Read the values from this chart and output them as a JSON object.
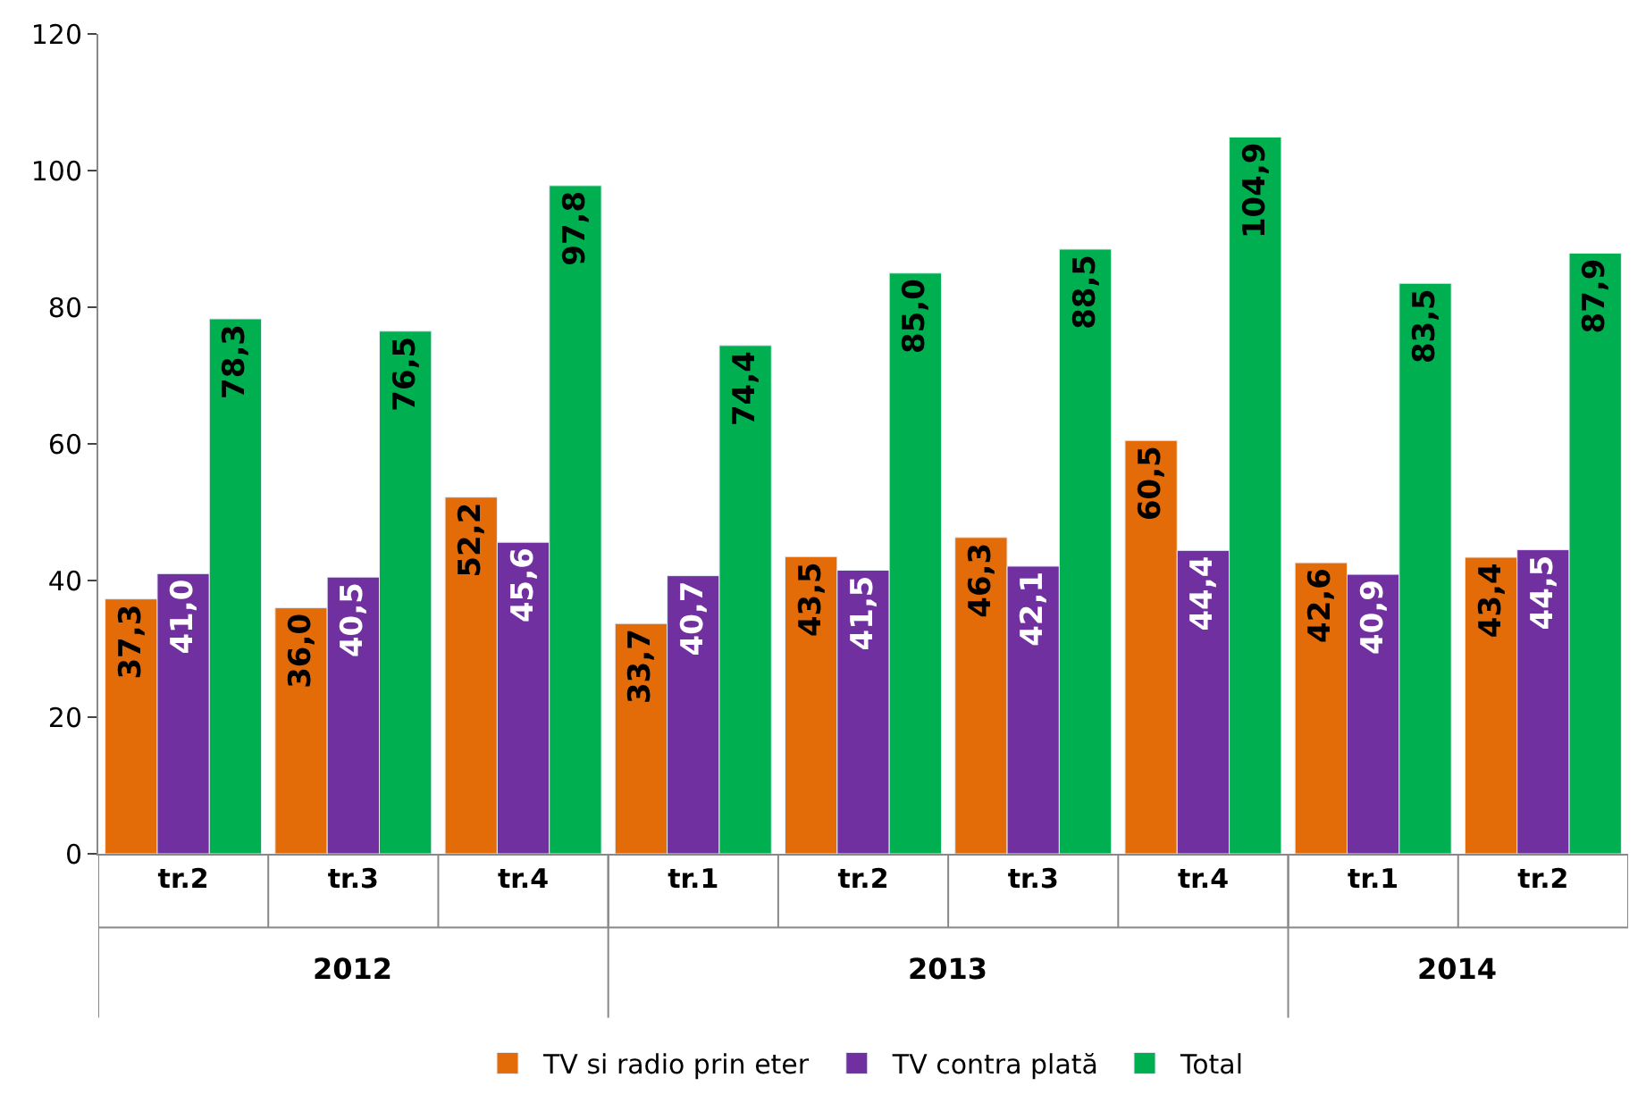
{
  "chart_data": {
    "type": "bar",
    "categories": [
      "tr.2",
      "tr.3",
      "tr.4",
      "tr.1",
      "tr.2",
      "tr.3",
      "tr.4",
      "tr.1",
      "tr.2"
    ],
    "annotations": [
      "2012",
      "2013",
      "2014"
    ],
    "series": [
      {
        "name": "TV si radio prin eter",
        "color": "#e36c09",
        "values": [
          37.3,
          36.0,
          52.2,
          33.7,
          43.5,
          46.3,
          60.5,
          42.6,
          43.4
        ],
        "value_labels": [
          "37,3",
          "36,0",
          "52,2",
          "33,7",
          "43,5",
          "46,3",
          "60,5",
          "42,6",
          "43,4"
        ]
      },
      {
        "name": "TV contra plată",
        "color": "#7030a0",
        "values": [
          41.0,
          40.5,
          45.6,
          40.7,
          41.5,
          42.1,
          44.4,
          40.9,
          44.5
        ],
        "value_labels": [
          "41,0",
          "40,5",
          "45,6",
          "40,7",
          "41,5",
          "42,1",
          "44,4",
          "40,9",
          "44,5"
        ]
      },
      {
        "name": "Total",
        "color": "#00b050",
        "values": [
          78.3,
          76.5,
          97.8,
          74.4,
          85.0,
          88.5,
          104.9,
          83.5,
          87.9
        ],
        "value_labels": [
          "78,3",
          "76,5",
          "97,8",
          "74,4",
          "85,0",
          "88,5",
          "104,9",
          "83,5",
          "87,9"
        ]
      }
    ],
    "ylim": [
      0,
      120
    ],
    "yticks": [
      0,
      20,
      40,
      60,
      80,
      100,
      120
    ],
    "legend": "bottom"
  }
}
